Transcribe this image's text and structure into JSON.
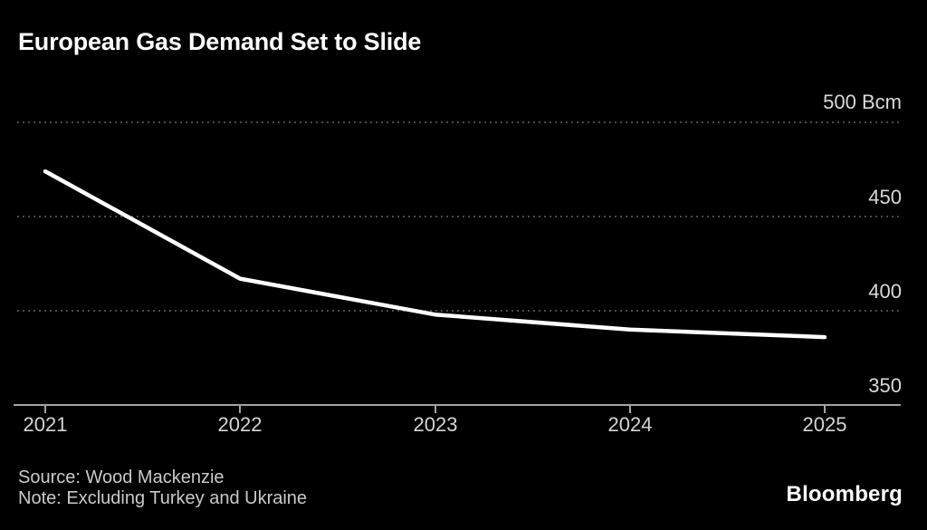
{
  "header": {
    "title": "European Gas Demand Set to Slide"
  },
  "chart_data": {
    "type": "line",
    "title": "European Gas Demand Set to Slide",
    "categories": [
      "2021",
      "2022",
      "2023",
      "2024",
      "2025"
    ],
    "series": [
      {
        "name": "European gas demand",
        "values": [
          474,
          417,
          398,
          390,
          386
        ]
      }
    ],
    "unit": "Bcm",
    "ylim": [
      350,
      500
    ],
    "y_tick_values": [
      500,
      450,
      400,
      350
    ],
    "y_tick_labels": [
      "500 Bcm",
      "450",
      "400",
      "350"
    ],
    "grid": "horizontal dotted",
    "legend": "none",
    "line_color": "#ffffff"
  },
  "footer": {
    "source": "Source: Wood Mackenzie",
    "note": "Note: Excluding Turkey and Ukraine",
    "brand": "Bloomberg"
  },
  "colors": {
    "background": "#000000",
    "title": "#ffffff",
    "line": "#ffffff",
    "gridline": "#4a4a4a",
    "axis": "#a3a3a3",
    "tick_label": "#d9d9d9",
    "footer_text": "#c9c9c9",
    "brand": "#ffffff"
  }
}
